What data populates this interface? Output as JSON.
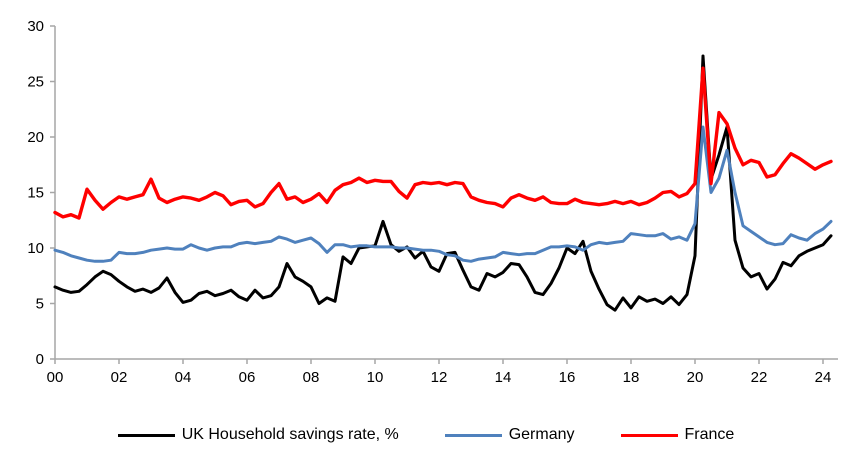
{
  "chart_data": {
    "type": "line",
    "title": "",
    "x_start": "2000Q1",
    "x_end": "2024Q2",
    "frequency": "quarterly",
    "x_tick_labels": [
      "00",
      "02",
      "04",
      "06",
      "08",
      "10",
      "12",
      "14",
      "16",
      "18",
      "20",
      "22",
      "24"
    ],
    "y_ticks": [
      0,
      5,
      10,
      15,
      20,
      25,
      30
    ],
    "ylim": [
      0,
      30
    ],
    "grid": false,
    "legend_position": "bottom",
    "axis_color": "#a6a6a6",
    "series": [
      {
        "name": "UK Household savings rate, %",
        "color": "#000000",
        "values": [
          6.5,
          6.2,
          6.0,
          6.1,
          6.7,
          7.4,
          7.9,
          7.6,
          7.0,
          6.5,
          6.1,
          6.3,
          6.0,
          6.4,
          7.3,
          6.0,
          5.1,
          5.3,
          5.9,
          6.1,
          5.7,
          5.9,
          6.2,
          5.6,
          5.3,
          6.2,
          5.5,
          5.7,
          6.5,
          8.6,
          7.4,
          7.0,
          6.5,
          5.0,
          5.5,
          5.2,
          9.2,
          8.6,
          10.0,
          10.1,
          10.2,
          12.4,
          10.3,
          9.7,
          10.1,
          9.1,
          9.7,
          8.3,
          7.9,
          9.5,
          9.6,
          8.0,
          6.5,
          6.2,
          7.7,
          7.4,
          7.8,
          8.6,
          8.5,
          7.4,
          6.0,
          5.8,
          6.8,
          8.2,
          10.0,
          9.5,
          10.6,
          7.9,
          6.3,
          4.9,
          4.4,
          5.5,
          4.6,
          5.6,
          5.2,
          5.4,
          5.0,
          5.6,
          4.9,
          5.8,
          9.3,
          27.3,
          16.2,
          18.4,
          20.9,
          10.7,
          8.2,
          7.4,
          7.7,
          6.3,
          7.2,
          8.7,
          8.4,
          9.3,
          9.7,
          10.0,
          10.3,
          11.1
        ]
      },
      {
        "name": "Germany",
        "color": "#4f81bd",
        "values": [
          9.8,
          9.6,
          9.3,
          9.1,
          8.9,
          8.8,
          8.8,
          8.9,
          9.6,
          9.5,
          9.5,
          9.6,
          9.8,
          9.9,
          10.0,
          9.9,
          9.9,
          10.3,
          10.0,
          9.8,
          10.0,
          10.1,
          10.1,
          10.4,
          10.5,
          10.4,
          10.5,
          10.6,
          11.0,
          10.8,
          10.5,
          10.7,
          10.9,
          10.4,
          9.6,
          10.3,
          10.3,
          10.1,
          10.2,
          10.2,
          10.1,
          10.1,
          10.1,
          10.0,
          10.0,
          9.9,
          9.8,
          9.8,
          9.7,
          9.4,
          9.3,
          8.9,
          8.8,
          9.0,
          9.1,
          9.2,
          9.6,
          9.5,
          9.4,
          9.5,
          9.5,
          9.8,
          10.1,
          10.1,
          10.2,
          10.1,
          9.8,
          10.3,
          10.5,
          10.4,
          10.5,
          10.6,
          11.3,
          11.2,
          11.1,
          11.1,
          11.3,
          10.8,
          11.0,
          10.7,
          12.2,
          20.9,
          15.0,
          16.3,
          18.8,
          15.0,
          12.0,
          11.5,
          11.0,
          10.5,
          10.3,
          10.4,
          11.2,
          10.9,
          10.7,
          11.3,
          11.7,
          12.4
        ]
      },
      {
        "name": "France",
        "color": "#ff0000",
        "values": [
          13.2,
          12.8,
          13.0,
          12.7,
          15.3,
          14.3,
          13.5,
          14.1,
          14.6,
          14.4,
          14.6,
          14.8,
          16.2,
          14.5,
          14.1,
          14.4,
          14.6,
          14.5,
          14.3,
          14.6,
          15.0,
          14.7,
          13.9,
          14.2,
          14.3,
          13.7,
          14.0,
          15.0,
          15.8,
          14.4,
          14.6,
          14.1,
          14.4,
          14.9,
          14.1,
          15.2,
          15.7,
          15.9,
          16.3,
          15.9,
          16.1,
          16.0,
          16.0,
          15.1,
          14.5,
          15.7,
          15.9,
          15.8,
          15.9,
          15.7,
          15.9,
          15.8,
          14.6,
          14.3,
          14.1,
          14.0,
          13.7,
          14.5,
          14.8,
          14.5,
          14.3,
          14.6,
          14.1,
          14.0,
          14.0,
          14.4,
          14.1,
          14.0,
          13.9,
          14.0,
          14.2,
          14.0,
          14.2,
          13.9,
          14.1,
          14.5,
          15.0,
          15.1,
          14.6,
          14.9,
          15.8,
          26.2,
          15.8,
          22.2,
          21.2,
          19.0,
          17.5,
          17.9,
          17.7,
          16.4,
          16.6,
          17.6,
          18.5,
          18.1,
          17.6,
          17.1,
          17.5,
          17.8
        ]
      }
    ]
  },
  "legend": {
    "uk_label": "UK Household savings rate, %",
    "germany_label": "Germany",
    "france_label": "France"
  }
}
